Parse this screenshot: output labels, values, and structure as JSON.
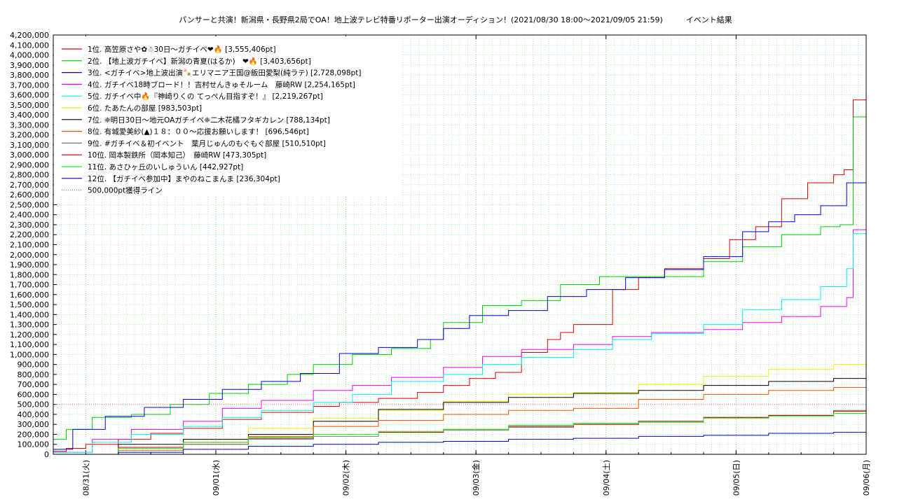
{
  "chart_data": {
    "type": "line",
    "title": "パンサーと共演！新潟県・長野県2局でOA！地上波テレビ特番リポーター出演オーディション！(2021/08/30 18:00〜2021/09/05 21:59)　　　イベント結果",
    "xlabel": "",
    "ylabel": "",
    "xlim": [
      0,
      6.25
    ],
    "ylim": [
      0,
      4200000
    ],
    "grid": true,
    "legend_position": "top-left",
    "x_tick_labels": [
      "08/31(火)",
      "09/01(水)",
      "09/02(木)",
      "09/03(金)",
      "09/04(土)",
      "09/05(日)",
      "09/06(月)"
    ],
    "y_tick_labels": [
      "0",
      "100,000",
      "200,000",
      "300,000",
      "400,000",
      "500,000",
      "600,000",
      "700,000",
      "800,000",
      "900,000",
      "1,000,000",
      "1,100,000",
      "1,200,000",
      "1,300,000",
      "1,400,000",
      "1,500,000",
      "1,600,000",
      "1,700,000",
      "1,800,000",
      "1,900,000",
      "2,000,000",
      "2,100,000",
      "2,200,000",
      "2,300,000",
      "2,400,000",
      "2,500,000",
      "2,600,000",
      "2,700,000",
      "2,800,000",
      "2,900,000",
      "3,000,000",
      "3,100,000",
      "3,200,000",
      "3,300,000",
      "3,400,000",
      "3,500,000",
      "3,600,000",
      "3,700,000",
      "3,800,000",
      "3,900,000",
      "4,000,000",
      "4,100,000",
      "4,200,000"
    ],
    "series": [
      {
        "name": "1位. 高笠原さや✿☃30日〜ガチイベ❤🔥 [3,555,406pt]",
        "color": "#dd0000",
        "x": [
          0,
          0.1,
          0.25,
          0.5,
          0.75,
          1.0,
          1.3,
          1.6,
          2.0,
          2.2,
          2.5,
          2.8,
          3.0,
          3.2,
          3.4,
          3.6,
          3.8,
          3.9,
          4.0,
          4.3,
          4.5,
          4.7,
          5.0,
          5.2,
          5.4,
          5.6,
          5.8,
          6.0,
          6.08,
          6.15,
          6.25
        ],
        "y": [
          30000,
          60000,
          100000,
          150000,
          210000,
          260000,
          350000,
          420000,
          480000,
          520000,
          560000,
          620000,
          690000,
          760000,
          820000,
          1020000,
          1150000,
          1220000,
          1300000,
          1650000,
          1770000,
          1860000,
          1960000,
          2150000,
          2280000,
          2560000,
          2720000,
          2800000,
          2850000,
          3550000,
          3555406
        ]
      },
      {
        "name": "2位. 【地上波ガチイベ】新潟の青夏(はるか)　❤🔥 [3,403,656pt]",
        "color": "#00cc00",
        "x": [
          0,
          0.1,
          0.3,
          0.6,
          0.9,
          1.2,
          1.5,
          1.8,
          2.0,
          2.3,
          2.6,
          2.9,
          3.0,
          3.3,
          3.6,
          3.9,
          4.2,
          4.6,
          5.0,
          5.3,
          5.6,
          5.9,
          6.05,
          6.15,
          6.25
        ],
        "y": [
          150000,
          250000,
          370000,
          400000,
          500000,
          610000,
          700000,
          800000,
          900000,
          1000000,
          1060000,
          1150000,
          1320000,
          1490000,
          1540000,
          1700000,
          1780000,
          1780000,
          1930000,
          2080000,
          2200000,
          2280000,
          2300000,
          3380000,
          3403656
        ]
      },
      {
        "name": "3位. <ガチイベ>地上波出演🍡エリマニア王国@飯田愛梨(純ラテ) [2,728,098pt]",
        "color": "#0000dd",
        "x": [
          0,
          0.15,
          0.4,
          0.7,
          1.0,
          1.3,
          1.6,
          1.9,
          2.2,
          2.5,
          2.8,
          3.0,
          3.2,
          3.5,
          3.8,
          4.1,
          4.4,
          4.7,
          5.0,
          5.3,
          5.5,
          5.7,
          5.9,
          6.1,
          6.25
        ],
        "y": [
          50000,
          250000,
          380000,
          470000,
          550000,
          650000,
          730000,
          810000,
          1010000,
          1070000,
          1150000,
          1260000,
          1390000,
          1440000,
          1580000,
          1650000,
          1770000,
          1850000,
          1980000,
          2230000,
          2330000,
          2400000,
          2490000,
          2720000,
          2728098
        ]
      },
      {
        "name": "4位. ガチイベ18時ブロード！！吉村せんきゅそルーム　藤崎RW [2,254,165pt]",
        "color": "#ee00ee",
        "x": [
          0,
          0.3,
          0.6,
          1.0,
          1.3,
          1.6,
          2.0,
          2.3,
          2.6,
          3.0,
          3.3,
          3.6,
          4.0,
          4.3,
          4.6,
          5.0,
          5.3,
          5.6,
          5.9,
          6.1,
          6.15,
          6.25
        ],
        "y": [
          20000,
          150000,
          250000,
          330000,
          460000,
          540000,
          640000,
          690000,
          770000,
          870000,
          980000,
          1050000,
          1100000,
          1180000,
          1220000,
          1250000,
          1320000,
          1380000,
          1480000,
          1570000,
          2250000,
          2254165
        ]
      },
      {
        "name": "5位. ガチイベ中🔥『神崎りくの てっぺん目指すぞ！』 [2,219,267pt]",
        "color": "#00eeee",
        "x": [
          0,
          0.3,
          0.6,
          1.0,
          1.3,
          1.6,
          2.0,
          2.3,
          2.6,
          3.0,
          3.3,
          3.6,
          4.0,
          4.3,
          4.6,
          5.0,
          5.3,
          5.6,
          5.9,
          6.1,
          6.15,
          6.25
        ],
        "y": [
          20000,
          120000,
          200000,
          280000,
          370000,
          440000,
          520000,
          600000,
          730000,
          800000,
          900000,
          970000,
          1050000,
          1150000,
          1210000,
          1300000,
          1450000,
          1550000,
          1680000,
          1860000,
          2210000,
          2219267
        ]
      },
      {
        "name": "6位. たあたんの部屋 [983,503pt]",
        "color": "#eeee00",
        "x": [
          0,
          0.5,
          1.0,
          1.5,
          2.0,
          2.5,
          3.0,
          3.5,
          4.0,
          4.5,
          5.0,
          5.5,
          6.0,
          6.25
        ],
        "y": [
          0,
          60000,
          150000,
          260000,
          360000,
          440000,
          530000,
          600000,
          620000,
          700000,
          780000,
          850000,
          900000,
          983503
        ]
      },
      {
        "name": "7位. ❈明日30日〜地元OAガチイベ❈二木花橘フタギカレン [788,134pt]",
        "color": "#000000",
        "x": [
          0,
          0.5,
          1.0,
          1.5,
          2.0,
          2.5,
          3.0,
          3.5,
          4.0,
          4.5,
          5.0,
          5.5,
          6.0,
          6.25
        ],
        "y": [
          0,
          100000,
          150000,
          200000,
          330000,
          450000,
          520000,
          570000,
          610000,
          640000,
          690000,
          730000,
          760000,
          788134
        ]
      },
      {
        "name": "8位. 有城愛美紗(▲)１８：００〜応援お願いします！ [696,546pt]",
        "color": "#ee5500",
        "x": [
          0,
          0.5,
          1.0,
          1.5,
          2.0,
          2.5,
          3.0,
          3.5,
          4.0,
          4.5,
          5.0,
          5.5,
          6.0,
          6.25
        ],
        "y": [
          0,
          40000,
          100000,
          180000,
          280000,
          340000,
          400000,
          440000,
          460000,
          550000,
          600000,
          640000,
          670000,
          696546
        ]
      },
      {
        "name": "9位. #ガチイベ＆初イベント　葉月じゅんのもぐもぐ部屋 [510,510pt]",
        "color": "#777777",
        "x": [
          0,
          0.5,
          1.0,
          1.5,
          2.0,
          2.5,
          3.0,
          3.5,
          4.0,
          4.5,
          5.0,
          5.5,
          6.0,
          6.25
        ],
        "y": [
          0,
          60000,
          100000,
          150000,
          180000,
          220000,
          240000,
          270000,
          310000,
          330000,
          370000,
          390000,
          440000,
          510510
        ]
      },
      {
        "name": "10位. 岡本製鉄所（岡本知己）　藤崎RW [473,305pt]",
        "color": "#bb0000",
        "x": [
          0,
          0.5,
          1.0,
          1.5,
          2.0,
          2.5,
          3.0,
          3.5,
          4.0,
          4.5,
          5.0,
          5.5,
          6.0,
          6.25
        ],
        "y": [
          0,
          70000,
          120000,
          160000,
          200000,
          220000,
          250000,
          280000,
          300000,
          330000,
          370000,
          390000,
          430000,
          473305
        ]
      },
      {
        "name": "11位. あさひヶ丘のいしゅういん [442,927pt]",
        "color": "#22ee22",
        "x": [
          0,
          0.5,
          1.0,
          1.5,
          2.0,
          2.5,
          3.0,
          3.5,
          4.0,
          4.5,
          5.0,
          5.5,
          6.0,
          6.25
        ],
        "y": [
          0,
          60000,
          120000,
          170000,
          200000,
          230000,
          250000,
          290000,
          310000,
          320000,
          360000,
          380000,
          410000,
          442927
        ]
      },
      {
        "name": "12位. 【ガチイベ参加中】まやのねこまんま [236,304pt]",
        "color": "#0000bb",
        "x": [
          0,
          0.5,
          1.0,
          1.5,
          2.0,
          2.5,
          3.0,
          3.5,
          4.0,
          4.5,
          5.0,
          5.5,
          6.0,
          6.25
        ],
        "y": [
          0,
          20000,
          50000,
          80000,
          100000,
          120000,
          130000,
          150000,
          160000,
          180000,
          190000,
          210000,
          220000,
          236304
        ]
      },
      {
        "name": "500,000pt獲得ライン",
        "color": "#cc6666",
        "dotted": true,
        "x": [
          0,
          6.25
        ],
        "y": [
          500000,
          500000
        ]
      }
    ]
  }
}
